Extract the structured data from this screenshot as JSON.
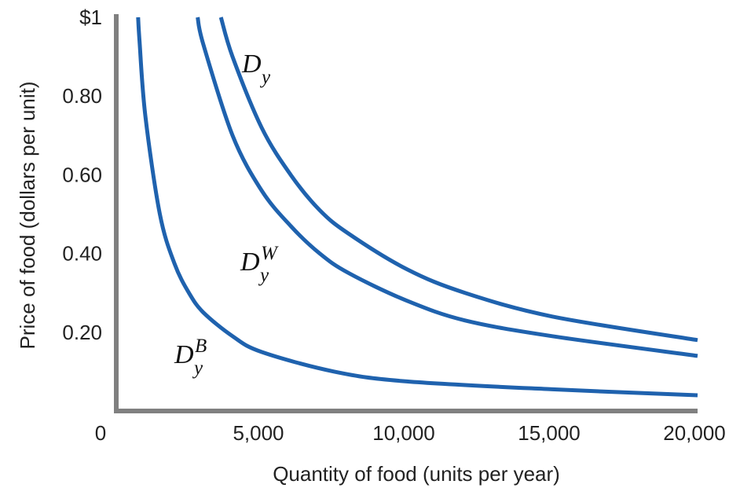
{
  "chart_data": {
    "type": "line",
    "xlabel": "Quantity of food (units per year)",
    "ylabel": "Price of food (dollars per unit)",
    "xlim": [
      0,
      20000
    ],
    "ylim": [
      0,
      1.0
    ],
    "grid": false,
    "x_ticks": [
      {
        "value": 0,
        "label": "0"
      },
      {
        "value": 5000,
        "label": "5,000"
      },
      {
        "value": 10000,
        "label": "10,000"
      },
      {
        "value": 15000,
        "label": "15,000"
      },
      {
        "value": 20000,
        "label": "20,000"
      }
    ],
    "y_ticks": [
      {
        "value": 1.0,
        "label": "$1"
      },
      {
        "value": 0.8,
        "label": "0.80"
      },
      {
        "value": 0.6,
        "label": "0.60"
      },
      {
        "value": 0.4,
        "label": "0.40"
      },
      {
        "value": 0.2,
        "label": "0.20"
      }
    ],
    "line_color": "#1f62ae",
    "axis_color": "#808080",
    "series": [
      {
        "name": "Dy",
        "label_main": "D",
        "label_sub": "y",
        "label_sup": "",
        "x": [
          3600,
          4000,
          5000,
          6000,
          7000,
          8000,
          10000,
          12000,
          15000,
          20000
        ],
        "y": [
          1.0,
          0.9,
          0.72,
          0.6,
          0.51,
          0.45,
          0.36,
          0.3,
          0.24,
          0.18
        ]
      },
      {
        "name": "DyW",
        "label_main": "D",
        "label_sub": "y",
        "label_sup": "W",
        "x": [
          2800,
          3000,
          4000,
          5000,
          6000,
          7000,
          8000,
          10000,
          12000,
          15000,
          20000
        ],
        "y": [
          1.0,
          0.93,
          0.7,
          0.56,
          0.47,
          0.4,
          0.35,
          0.28,
          0.23,
          0.19,
          0.14
        ]
      },
      {
        "name": "DyB",
        "label_main": "D",
        "label_sub": "y",
        "label_sup": "B",
        "x": [
          750,
          800,
          1000,
          1500,
          2000,
          2500,
          3000,
          4000,
          5000,
          7500,
          10000,
          15000,
          20000
        ],
        "y": [
          1.0,
          0.94,
          0.75,
          0.5,
          0.375,
          0.3,
          0.25,
          0.19,
          0.15,
          0.1,
          0.075,
          0.055,
          0.04
        ]
      }
    ]
  }
}
